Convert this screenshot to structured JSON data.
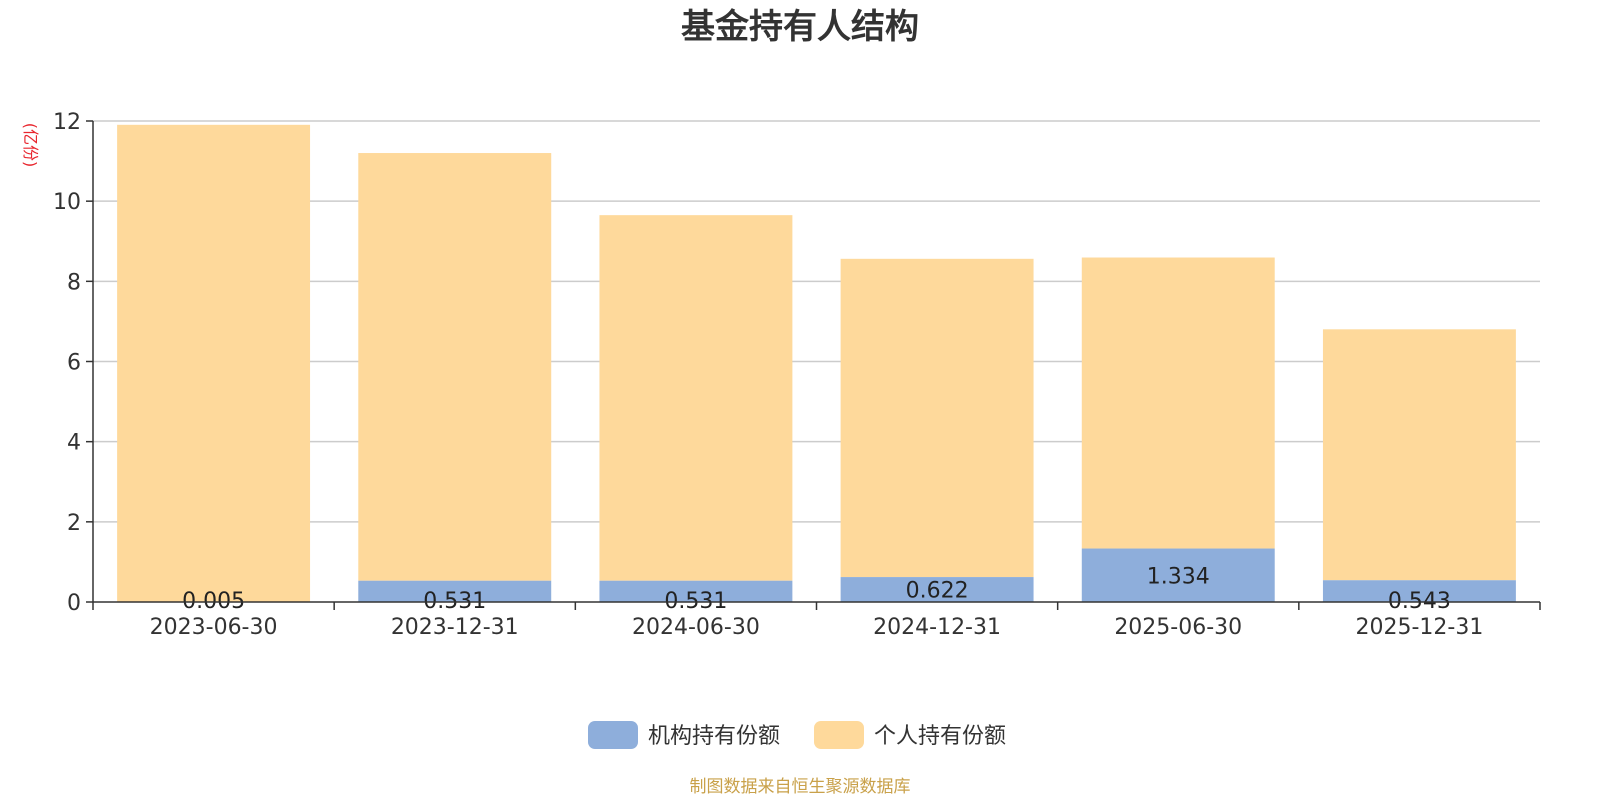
{
  "chart_data": {
    "type": "bar",
    "stacked": true,
    "title": "基金持有人结构",
    "ylabel": "(亿份)",
    "categories": [
      "2023-06-30",
      "2023-12-31",
      "2024-06-30",
      "2024-12-31",
      "2025-06-30",
      "2025-12-31"
    ],
    "series": [
      {
        "name": "机构持有份额",
        "color": "#8eaedb",
        "values": [
          0.005,
          0.531,
          0.531,
          0.622,
          1.334,
          0.543
        ],
        "labels": [
          "0.005",
          "0.531",
          "0.531",
          "0.622",
          "1.334",
          "0.543"
        ]
      },
      {
        "name": "个人持有份额",
        "color": "#fed99b",
        "values": [
          11.9,
          10.67,
          9.12,
          7.94,
          7.26,
          6.26
        ]
      }
    ],
    "ylim": [
      0,
      12
    ],
    "yticks": [
      0,
      2,
      4,
      6,
      8,
      10,
      12
    ],
    "grid": true,
    "legend_position": "bottom-center",
    "source": "制图数据来自恒生聚源数据库",
    "colors": {
      "title": "#333333",
      "unit": "#e8262e",
      "source": "#c9a14a",
      "grid": "#cccccc",
      "axis": "#333333"
    }
  }
}
